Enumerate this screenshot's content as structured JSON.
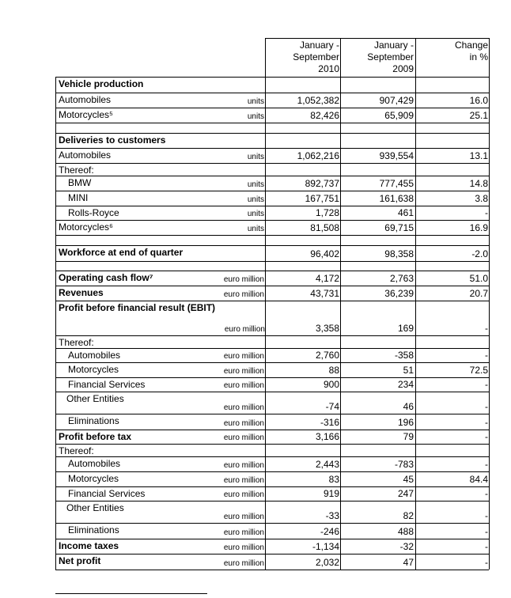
{
  "header": {
    "columns": [
      [
        "January -",
        "September",
        "2010"
      ],
      [
        "January -",
        "September",
        "2009"
      ],
      [
        "Change",
        "in %"
      ]
    ]
  },
  "table": {
    "rows": [
      {
        "label": "Vehicle production"
      },
      {
        "label": "Automobiles",
        "unit": "units",
        "values": [
          "1,052,382",
          "907,429",
          "16.0"
        ]
      },
      {
        "label": "Motorcycles⁵",
        "unit": "units",
        "values": [
          "82,426",
          "65,909",
          "25.1"
        ]
      },
      {
        "label": "Deliveries to customers"
      },
      {
        "label": "Automobiles",
        "unit": "units",
        "values": [
          "1,062,216",
          "939,554",
          "13.1"
        ]
      },
      {
        "label": "Thereof:"
      },
      {
        "label": "BMW",
        "unit": "units",
        "values": [
          "892,737",
          "777,455",
          "14.8"
        ]
      },
      {
        "label": "MINI",
        "unit": "units",
        "values": [
          "167,751",
          "161,638",
          "3.8"
        ]
      },
      {
        "label": "Rolls-Royce",
        "unit": "units",
        "values": [
          "1,728",
          "461",
          "-"
        ]
      },
      {
        "label": "Motorcycles⁶",
        "unit": "units",
        "values": [
          "81,508",
          "69,715",
          "16.9"
        ]
      },
      {
        "label": "Workforce at end of quarter",
        "values": [
          "96,402",
          "98,358",
          "-2.0"
        ]
      },
      {
        "label": "Operating cash flow⁷",
        "unit": "euro million",
        "values": [
          "4,172",
          "2,763",
          "51.0"
        ]
      },
      {
        "label": "Revenues",
        "unit": "euro million",
        "values": [
          "43,731",
          "36,239",
          "20.7"
        ]
      },
      {
        "label": "Profit before financial result (EBIT)",
        "unit": "euro million",
        "values": [
          "3,358",
          "169",
          "-"
        ]
      },
      {
        "label": "Thereof:"
      },
      {
        "label": "Automobiles",
        "unit": "euro million",
        "values": [
          "2,760",
          "-358",
          "-"
        ]
      },
      {
        "label": "Motorcycles",
        "unit": "euro million",
        "values": [
          "88",
          "51",
          "72.5"
        ]
      },
      {
        "label": "Financial Services",
        "unit": "euro million",
        "values": [
          "900",
          "234",
          "-"
        ]
      },
      {
        "label": "Other Entities",
        "unit": "euro million",
        "values": [
          "-74",
          "46",
          "-"
        ]
      },
      {
        "label": "Eliminations",
        "unit": "euro million",
        "values": [
          "-316",
          "196",
          "-"
        ]
      },
      {
        "label": "Profit before tax",
        "unit": "euro million",
        "values": [
          "3,166",
          "79",
          "-"
        ]
      },
      {
        "label": "Thereof:"
      },
      {
        "label": "Automobiles",
        "unit": "euro million",
        "values": [
          "2,443",
          "-783",
          "-"
        ]
      },
      {
        "label": "Motorcycles",
        "unit": "euro million",
        "values": [
          "83",
          "45",
          "84.4"
        ]
      },
      {
        "label": "Financial Services",
        "unit": "euro million",
        "values": [
          "919",
          "247",
          "-"
        ]
      },
      {
        "label": "Other Entities",
        "unit": "euro million",
        "values": [
          "-33",
          "82",
          "-"
        ]
      },
      {
        "label": "Eliminations",
        "unit": "euro million",
        "values": [
          "-246",
          "488",
          "-"
        ]
      },
      {
        "label": "Income taxes",
        "unit": "euro million",
        "values": [
          "-1,134",
          "-32",
          "-"
        ]
      },
      {
        "label": "Net profit",
        "unit": "euro million",
        "values": [
          "2,032",
          "47",
          "-"
        ]
      }
    ]
  }
}
